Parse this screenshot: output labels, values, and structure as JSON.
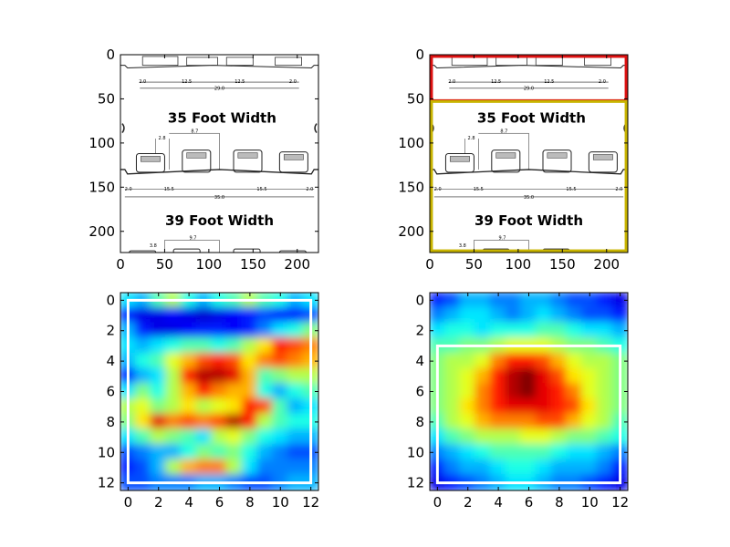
{
  "chart_data": [
    {
      "type": "image",
      "panel": "top-left",
      "xlim": [
        0,
        224
      ],
      "ylim": [
        224,
        0
      ],
      "xticks": [
        0,
        50,
        100,
        150,
        200
      ],
      "yticks": [
        0,
        50,
        100,
        150,
        200
      ],
      "image_text": {
        "title_35": "35 Foot Width",
        "title_39": "39 Foot Width",
        "dims_top": [
          "2.0",
          "12.5",
          "12.5",
          "2.0"
        ],
        "dim_top_total": "29.0",
        "dim_28": "2.8",
        "dim_87": "8.7",
        "dims_mid": [
          "2.0",
          "15.5",
          "15.5",
          "2.0"
        ],
        "dim_mid_total": "35.0",
        "dim_38": "3.8",
        "dim_97": "9.7"
      },
      "boxes": []
    },
    {
      "type": "image",
      "panel": "top-right",
      "xlim": [
        0,
        224
      ],
      "ylim": [
        224,
        0
      ],
      "xticks": [
        0,
        50,
        100,
        150,
        200
      ],
      "yticks": [
        0,
        50,
        100,
        150,
        200
      ],
      "image_text": {
        "title_35": "35 Foot Width",
        "title_39": "39 Foot Width",
        "dims_top": [
          "2.0",
          "12.5",
          "12.5",
          "2.0"
        ],
        "dim_top_total": "29.0",
        "dim_28": "2.8",
        "dim_87": "8.7",
        "dims_mid": [
          "2.0",
          "15.5",
          "15.5",
          "2.0"
        ],
        "dim_mid_total": "35.0",
        "dim_38": "3.8",
        "dim_97": "9.7"
      },
      "boxes": [
        {
          "x0": 2,
          "y0": 2,
          "x1": 222,
          "y1": 52,
          "color": "#dd1111"
        },
        {
          "x0": 2,
          "y0": 53,
          "x1": 222,
          "y1": 222,
          "color": "#c8b400"
        }
      ]
    },
    {
      "type": "heatmap",
      "panel": "bottom-left",
      "colormap": "jet",
      "xlim": [
        -0.5,
        12.5
      ],
      "ylim": [
        12.5,
        -0.5
      ],
      "xticks": [
        0,
        2,
        4,
        6,
        8,
        10,
        12
      ],
      "yticks": [
        0,
        2,
        4,
        6,
        8,
        10,
        12
      ],
      "grid": [
        [
          0.35,
          0.3,
          0.45,
          0.55,
          0.4,
          0.3,
          0.4,
          0.45,
          0.55,
          0.45,
          0.4,
          0.3,
          0.35
        ],
        [
          0.15,
          0.1,
          0.1,
          0.12,
          0.1,
          0.08,
          0.1,
          0.12,
          0.15,
          0.2,
          0.15,
          0.15,
          0.2
        ],
        [
          0.3,
          0.15,
          0.1,
          0.1,
          0.12,
          0.15,
          0.15,
          0.12,
          0.15,
          0.25,
          0.35,
          0.4,
          0.5
        ],
        [
          0.35,
          0.3,
          0.35,
          0.4,
          0.45,
          0.45,
          0.4,
          0.45,
          0.55,
          0.65,
          0.85,
          0.8,
          0.75
        ],
        [
          0.3,
          0.4,
          0.45,
          0.6,
          0.7,
          0.8,
          0.85,
          0.8,
          0.65,
          0.75,
          0.8,
          0.75,
          0.7
        ],
        [
          0.15,
          0.3,
          0.35,
          0.55,
          0.85,
          0.95,
          0.95,
          0.9,
          0.7,
          0.45,
          0.5,
          0.55,
          0.55
        ],
        [
          0.35,
          0.5,
          0.4,
          0.55,
          0.7,
          0.85,
          0.75,
          0.7,
          0.7,
          0.4,
          0.3,
          0.4,
          0.45
        ],
        [
          0.55,
          0.6,
          0.5,
          0.55,
          0.65,
          0.55,
          0.6,
          0.65,
          0.85,
          0.8,
          0.45,
          0.3,
          0.35
        ],
        [
          0.5,
          0.65,
          0.9,
          0.75,
          0.8,
          0.75,
          0.8,
          0.95,
          0.85,
          0.55,
          0.45,
          0.4,
          0.4
        ],
        [
          0.35,
          0.45,
          0.55,
          0.5,
          0.45,
          0.35,
          0.55,
          0.6,
          0.5,
          0.4,
          0.35,
          0.3,
          0.3
        ],
        [
          0.2,
          0.25,
          0.3,
          0.3,
          0.4,
          0.5,
          0.45,
          0.5,
          0.4,
          0.3,
          0.25,
          0.2,
          0.2
        ],
        [
          0.15,
          0.2,
          0.3,
          0.55,
          0.7,
          0.75,
          0.75,
          0.55,
          0.35,
          0.25,
          0.25,
          0.25,
          0.25
        ],
        [
          0.2,
          0.2,
          0.25,
          0.25,
          0.25,
          0.3,
          0.3,
          0.25,
          0.2,
          0.2,
          0.25,
          0.3,
          0.3
        ]
      ],
      "boxes": [
        {
          "x0": 0,
          "y0": 0,
          "x1": 12,
          "y1": 12,
          "color": "#ffffff"
        }
      ]
    },
    {
      "type": "heatmap",
      "panel": "bottom-right",
      "colormap": "jet",
      "xlim": [
        -0.5,
        12.5
      ],
      "ylim": [
        12.5,
        -0.5
      ],
      "xticks": [
        0,
        2,
        4,
        6,
        8,
        10,
        12
      ],
      "yticks": [
        0,
        2,
        4,
        6,
        8,
        10,
        12
      ],
      "grid": [
        [
          0.15,
          0.2,
          0.3,
          0.3,
          0.25,
          0.25,
          0.3,
          0.3,
          0.25,
          0.2,
          0.2,
          0.15,
          0.1
        ],
        [
          0.25,
          0.3,
          0.35,
          0.35,
          0.3,
          0.25,
          0.3,
          0.35,
          0.3,
          0.25,
          0.2,
          0.2,
          0.15
        ],
        [
          0.35,
          0.4,
          0.4,
          0.35,
          0.4,
          0.4,
          0.4,
          0.45,
          0.45,
          0.4,
          0.35,
          0.35,
          0.3
        ],
        [
          0.45,
          0.45,
          0.5,
          0.5,
          0.55,
          0.6,
          0.6,
          0.6,
          0.55,
          0.5,
          0.5,
          0.45,
          0.4
        ],
        [
          0.5,
          0.55,
          0.55,
          0.6,
          0.75,
          0.85,
          0.85,
          0.8,
          0.7,
          0.6,
          0.55,
          0.55,
          0.5
        ],
        [
          0.5,
          0.55,
          0.6,
          0.7,
          0.85,
          0.95,
          1.0,
          0.9,
          0.8,
          0.65,
          0.6,
          0.55,
          0.5
        ],
        [
          0.5,
          0.55,
          0.6,
          0.75,
          0.85,
          0.95,
          1.0,
          0.9,
          0.85,
          0.75,
          0.6,
          0.55,
          0.5
        ],
        [
          0.5,
          0.55,
          0.65,
          0.75,
          0.85,
          0.9,
          0.9,
          0.9,
          0.85,
          0.8,
          0.65,
          0.55,
          0.5
        ],
        [
          0.45,
          0.55,
          0.6,
          0.7,
          0.75,
          0.75,
          0.75,
          0.8,
          0.8,
          0.7,
          0.6,
          0.55,
          0.45
        ],
        [
          0.35,
          0.45,
          0.5,
          0.55,
          0.55,
          0.55,
          0.6,
          0.6,
          0.55,
          0.5,
          0.5,
          0.45,
          0.4
        ],
        [
          0.25,
          0.3,
          0.35,
          0.4,
          0.45,
          0.45,
          0.45,
          0.45,
          0.4,
          0.35,
          0.35,
          0.3,
          0.25
        ],
        [
          0.15,
          0.25,
          0.3,
          0.3,
          0.35,
          0.4,
          0.4,
          0.35,
          0.3,
          0.3,
          0.3,
          0.25,
          0.15
        ],
        [
          0.1,
          0.15,
          0.2,
          0.25,
          0.3,
          0.35,
          0.35,
          0.3,
          0.25,
          0.25,
          0.2,
          0.15,
          0.1
        ]
      ],
      "boxes": [
        {
          "x0": 0,
          "y0": 3,
          "x1": 12,
          "y1": 12,
          "color": "#ffffff"
        }
      ]
    }
  ]
}
